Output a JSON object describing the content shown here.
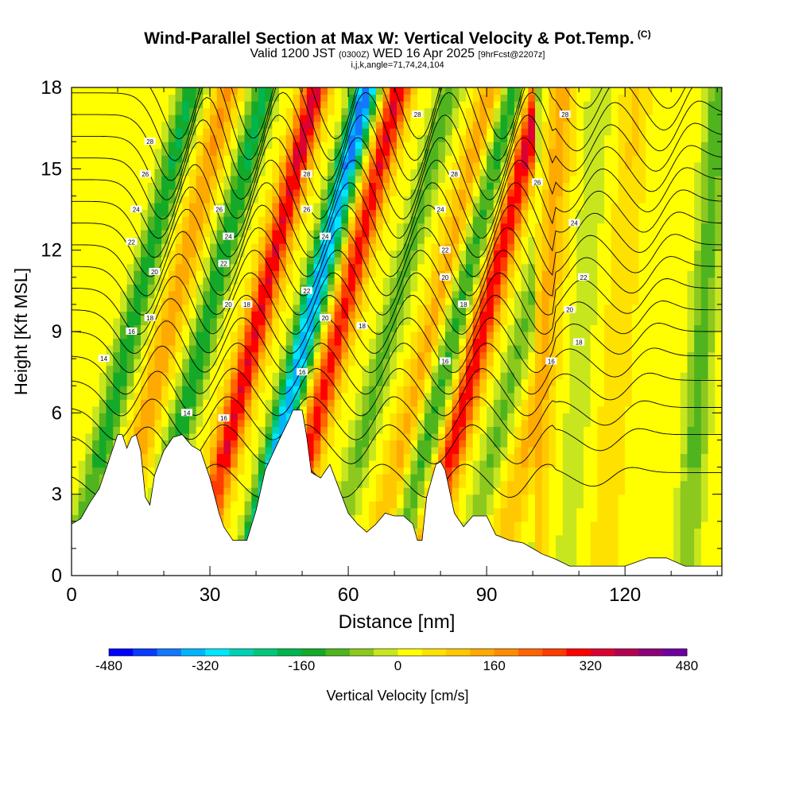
{
  "header": {
    "title": "Wind-Parallel Section at Max W: Vertical Velocity & Pot.Temp.",
    "copyright": "(C)",
    "valid_prefix": "Valid 1200 JST",
    "valid_zulu": "(0300Z)",
    "valid_date": "WED 16 Apr 2025",
    "forecast_tag": "[9hrFcst@2207z]",
    "indices": "i,j,k,angle=71,74,24,104"
  },
  "chart_data": {
    "type": "heatmap",
    "xlabel": "Distance [nm]",
    "ylabel": "Height [Kft MSL]",
    "xlim": [
      0,
      141
    ],
    "ylim": [
      0,
      18
    ],
    "x_ticks": [
      "0",
      "30",
      "60",
      "90",
      "120"
    ],
    "y_ticks": [
      "0",
      "3",
      "6",
      "9",
      "12",
      "15",
      "18"
    ],
    "colorbar": {
      "label": "Vertical Velocity [cm/s]",
      "range": [
        -480,
        480
      ],
      "step": 40,
      "tick_labels": [
        "-480",
        "-320",
        "-160",
        "0",
        "160",
        "320",
        "480"
      ],
      "colors": [
        "#0000ff",
        "#0a3cff",
        "#1478ff",
        "#00b4ff",
        "#00e6ff",
        "#00d2b4",
        "#00c878",
        "#00b450",
        "#14aa28",
        "#50b41e",
        "#8cc81e",
        "#c8e61e",
        "#ffff00",
        "#ffe100",
        "#ffc800",
        "#ffaa00",
        "#ff8c00",
        "#ff6400",
        "#ff3c00",
        "#ff0000",
        "#dc0032",
        "#b40050",
        "#8c0078",
        "#6e00a0"
      ]
    },
    "theta_contour_labels": [
      "14",
      "16",
      "18",
      "20",
      "22",
      "24",
      "26",
      "28"
    ],
    "terrain_height_kft": [
      [
        0,
        1.9
      ],
      [
        2,
        2.1
      ],
      [
        4,
        2.7
      ],
      [
        6,
        3.2
      ],
      [
        8,
        4.2
      ],
      [
        10,
        5.2
      ],
      [
        11,
        5.2
      ],
      [
        12,
        4.7
      ],
      [
        13,
        5.1
      ],
      [
        14,
        5.2
      ],
      [
        15,
        4.6
      ],
      [
        16,
        2.9
      ],
      [
        17,
        2.6
      ],
      [
        18,
        3.7
      ],
      [
        20,
        4.6
      ],
      [
        22,
        5.1
      ],
      [
        24,
        5.2
      ],
      [
        26,
        4.8
      ],
      [
        28,
        4.6
      ],
      [
        30,
        3.6
      ],
      [
        32,
        2.3
      ],
      [
        33,
        1.8
      ],
      [
        35,
        1.3
      ],
      [
        38,
        1.3
      ],
      [
        40,
        2.4
      ],
      [
        42,
        3.9
      ],
      [
        45,
        5.0
      ],
      [
        47,
        5.7
      ],
      [
        48,
        6.1
      ],
      [
        50,
        6.1
      ],
      [
        51,
        5.1
      ],
      [
        52,
        3.8
      ],
      [
        54,
        3.6
      ],
      [
        56,
        4.1
      ],
      [
        58,
        3.2
      ],
      [
        60,
        2.3
      ],
      [
        62,
        1.9
      ],
      [
        64,
        1.6
      ],
      [
        66,
        1.9
      ],
      [
        68,
        2.3
      ],
      [
        70,
        2.2
      ],
      [
        72,
        2.2
      ],
      [
        74,
        1.9
      ],
      [
        75,
        1.3
      ],
      [
        76,
        1.3
      ],
      [
        77,
        2.9
      ],
      [
        79,
        4.1
      ],
      [
        80,
        4.2
      ],
      [
        81,
        3.9
      ],
      [
        83,
        2.3
      ],
      [
        85,
        1.8
      ],
      [
        87,
        2.2
      ],
      [
        90,
        2.2
      ],
      [
        92,
        1.5
      ],
      [
        95,
        1.3
      ],
      [
        98,
        1.2
      ],
      [
        100,
        1.0
      ],
      [
        102,
        0.8
      ],
      [
        105,
        0.6
      ],
      [
        108,
        0.35
      ],
      [
        120,
        0.35
      ],
      [
        125,
        0.65
      ],
      [
        129,
        0.65
      ],
      [
        133,
        0.35
      ],
      [
        138,
        0.35
      ],
      [
        141,
        0.35
      ]
    ],
    "vertical_velocity_bands": [
      {
        "center_nm": 10,
        "peak_cm_s": -190
      },
      {
        "center_nm": 18,
        "peak_cm_s": 140
      },
      {
        "center_nm": 26,
        "peak_cm_s": -200
      },
      {
        "center_nm": 37,
        "peak_cm_s": 330
      },
      {
        "center_nm": 48,
        "peak_cm_s": -420
      },
      {
        "center_nm": 55,
        "peak_cm_s": 300
      },
      {
        "center_nm": 66,
        "peak_cm_s": -130
      },
      {
        "center_nm": 75,
        "peak_cm_s": 120
      },
      {
        "center_nm": 80,
        "peak_cm_s": -170
      },
      {
        "center_nm": 86,
        "peak_cm_s": 320
      },
      {
        "center_nm": 95,
        "peak_cm_s": -120
      },
      {
        "center_nm": 102,
        "peak_cm_s": 120
      },
      {
        "center_nm": 110,
        "peak_cm_s": -60
      },
      {
        "center_nm": 118,
        "peak_cm_s": 60
      },
      {
        "center_nm": 136,
        "peak_cm_s": -140
      }
    ]
  }
}
